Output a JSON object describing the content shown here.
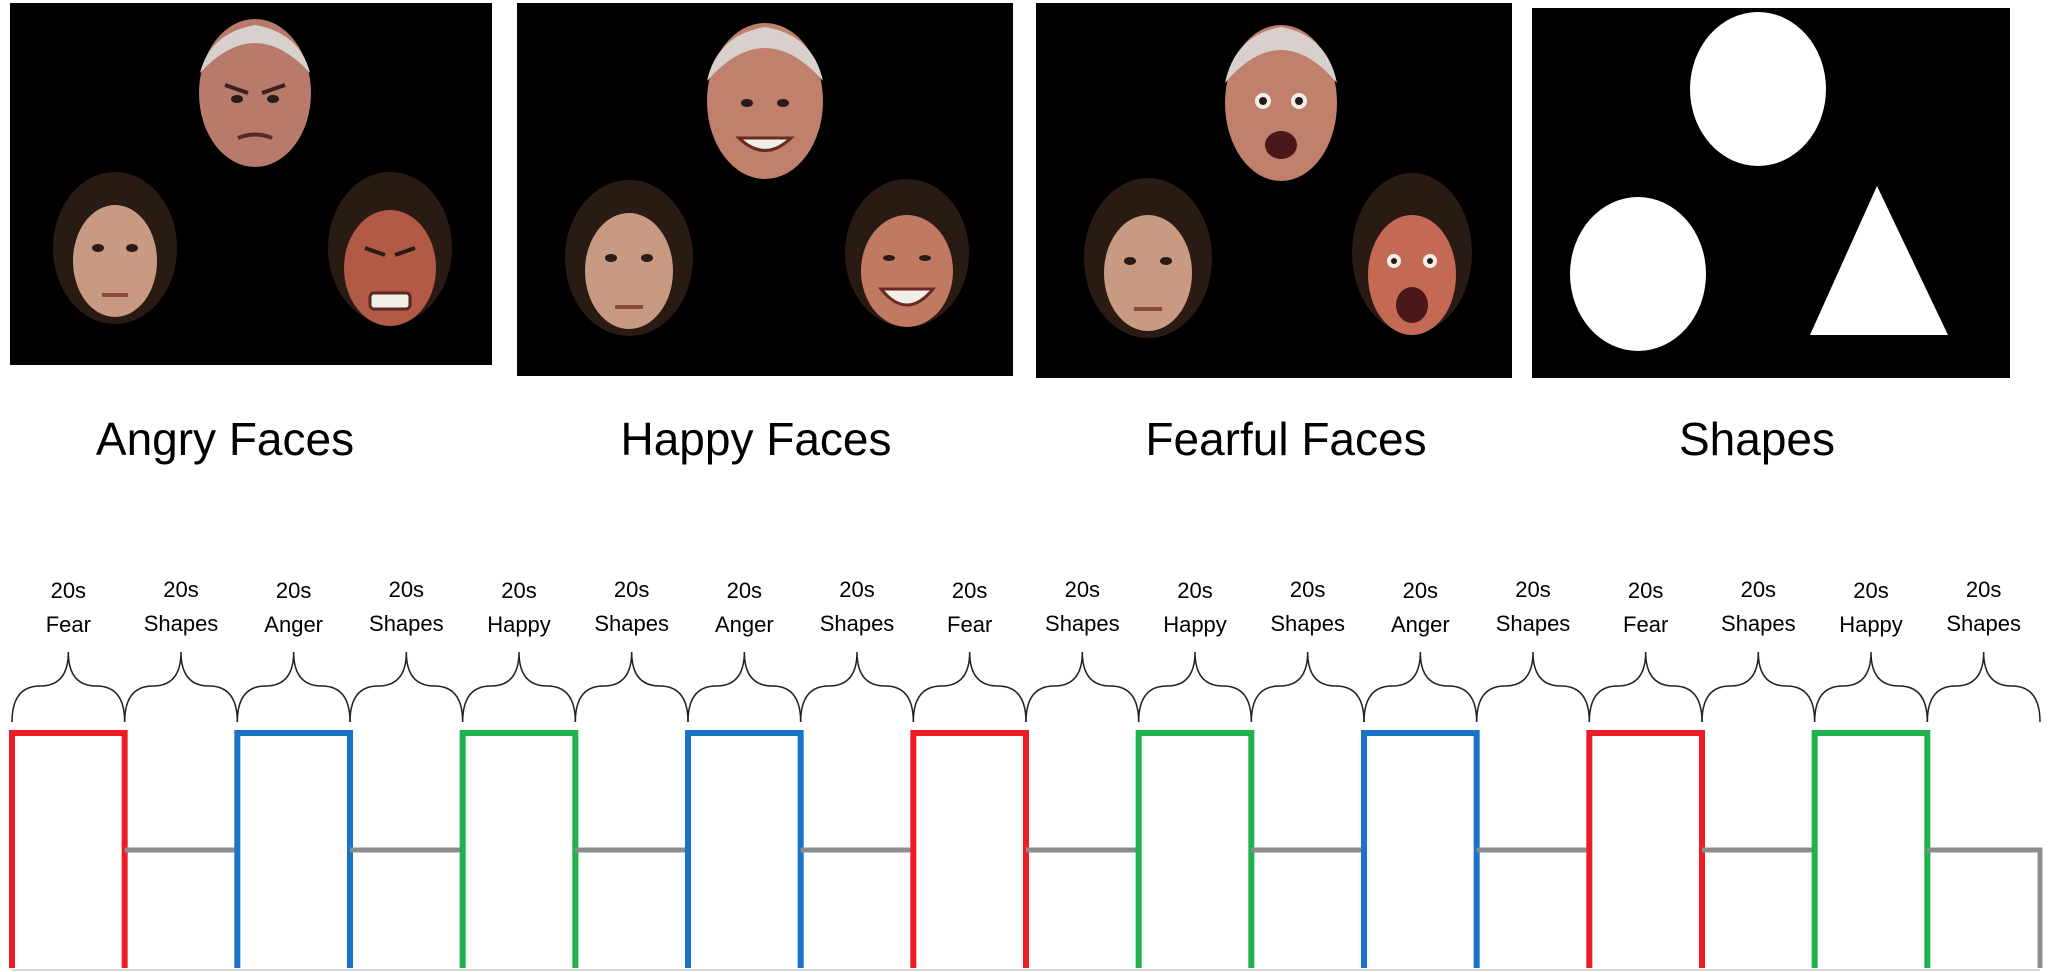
{
  "panels": [
    {
      "caption": "Angry Faces",
      "expression": "angry"
    },
    {
      "caption": "Happy Faces",
      "expression": "happy"
    },
    {
      "caption": "Fearful Faces",
      "expression": "fearful"
    },
    {
      "caption": "Shapes",
      "expression": "shapes"
    }
  ],
  "timeline": {
    "blocks": [
      {
        "duration": "20s",
        "label": "Fear",
        "kind": "fear"
      },
      {
        "duration": "20s",
        "label": "Shapes",
        "kind": "shapes"
      },
      {
        "duration": "20s",
        "label": "Anger",
        "kind": "anger"
      },
      {
        "duration": "20s",
        "label": "Shapes",
        "kind": "shapes"
      },
      {
        "duration": "20s",
        "label": "Happy",
        "kind": "happy"
      },
      {
        "duration": "20s",
        "label": "Shapes",
        "kind": "shapes"
      },
      {
        "duration": "20s",
        "label": "Anger",
        "kind": "anger"
      },
      {
        "duration": "20s",
        "label": "Shapes",
        "kind": "shapes"
      },
      {
        "duration": "20s",
        "label": "Fear",
        "kind": "fear"
      },
      {
        "duration": "20s",
        "label": "Shapes",
        "kind": "shapes"
      },
      {
        "duration": "20s",
        "label": "Happy",
        "kind": "happy"
      },
      {
        "duration": "20s",
        "label": "Shapes",
        "kind": "shapes"
      },
      {
        "duration": "20s",
        "label": "Anger",
        "kind": "anger"
      },
      {
        "duration": "20s",
        "label": "Shapes",
        "kind": "shapes"
      },
      {
        "duration": "20s",
        "label": "Fear",
        "kind": "fear"
      },
      {
        "duration": "20s",
        "label": "Shapes",
        "kind": "shapes"
      },
      {
        "duration": "20s",
        "label": "Happy",
        "kind": "happy"
      },
      {
        "duration": "20s",
        "label": "Shapes",
        "kind": "shapes"
      }
    ],
    "colors": {
      "fear": "#ee1c25",
      "anger": "#1a73c8",
      "happy": "#1fb14c",
      "shapes": "#8c8c8c"
    }
  }
}
